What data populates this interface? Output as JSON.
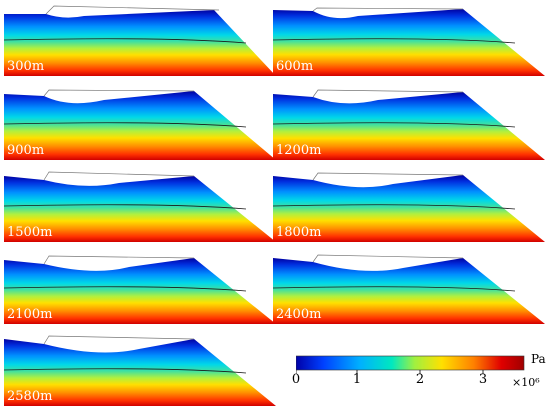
{
  "panels": [
    "300m",
    "600m",
    "900m",
    "1200m",
    "1500m",
    "1800m",
    "2100m",
    "2400m",
    "2580m"
  ],
  "colorbar": {
    "unit": "Pa",
    "scale": "×10⁶",
    "ticks": [
      "0",
      "1",
      "2",
      "3"
    ],
    "colormap": [
      "#0000a8",
      "#0040ff",
      "#00b0ff",
      "#00e8c0",
      "#a0f040",
      "#ffe000",
      "#ff8000",
      "#e00000",
      "#a00000"
    ]
  }
}
